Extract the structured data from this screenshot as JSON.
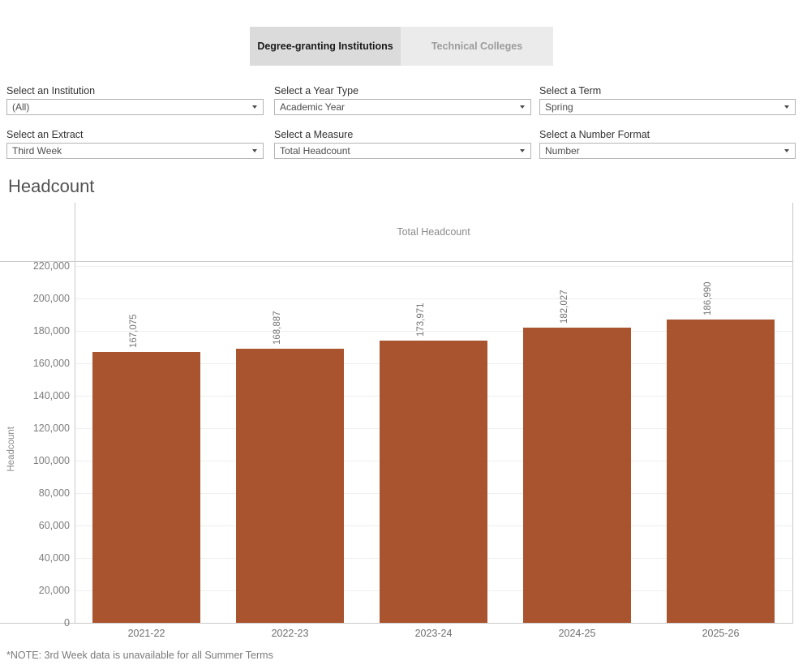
{
  "tabs": [
    {
      "label": "Degree-granting Institutions",
      "active": true
    },
    {
      "label": "Technical Colleges",
      "active": false
    }
  ],
  "filters": [
    {
      "label": "Select an Institution",
      "value": "(All)"
    },
    {
      "label": "Select a Year Type",
      "value": "Academic Year"
    },
    {
      "label": "Select a Term",
      "value": "Spring"
    },
    {
      "label": "Select an Extract",
      "value": "Third Week"
    },
    {
      "label": "Select a Measure",
      "value": "Total Headcount"
    },
    {
      "label": "Select a Number Format",
      "value": "Number"
    }
  ],
  "chart": {
    "note": "*NOTE: 3rd Week data is unavailable for all Summer Terms"
  },
  "colors": {
    "bar": "#a9542f",
    "active_tab_bg": "#dbdbdb",
    "inactive_tab_bg": "#ebebeb",
    "gridline": "#efefef",
    "axis_line": "#c9c9c9"
  },
  "chart_data": {
    "type": "bar",
    "title": "Headcount",
    "subtitle": "Total Headcount",
    "ylabel": "Headcount",
    "categories": [
      "2021-22",
      "2022-23",
      "2023-24",
      "2024-25",
      "2025-26"
    ],
    "values": [
      167075,
      168887,
      173971,
      182027,
      186990
    ],
    "value_labels": [
      "167,075",
      "168,887",
      "173,971",
      "182,027",
      "186,990"
    ],
    "ylim": [
      0,
      220000
    ],
    "ytick_step": 20000,
    "ytick_labels": [
      "0",
      "20,000",
      "40,000",
      "60,000",
      "80,000",
      "100,000",
      "120,000",
      "140,000",
      "160,000",
      "180,000",
      "200,000",
      "220,000"
    ],
    "grid": true,
    "legend_position": "none",
    "value_labels_rotated": true
  }
}
